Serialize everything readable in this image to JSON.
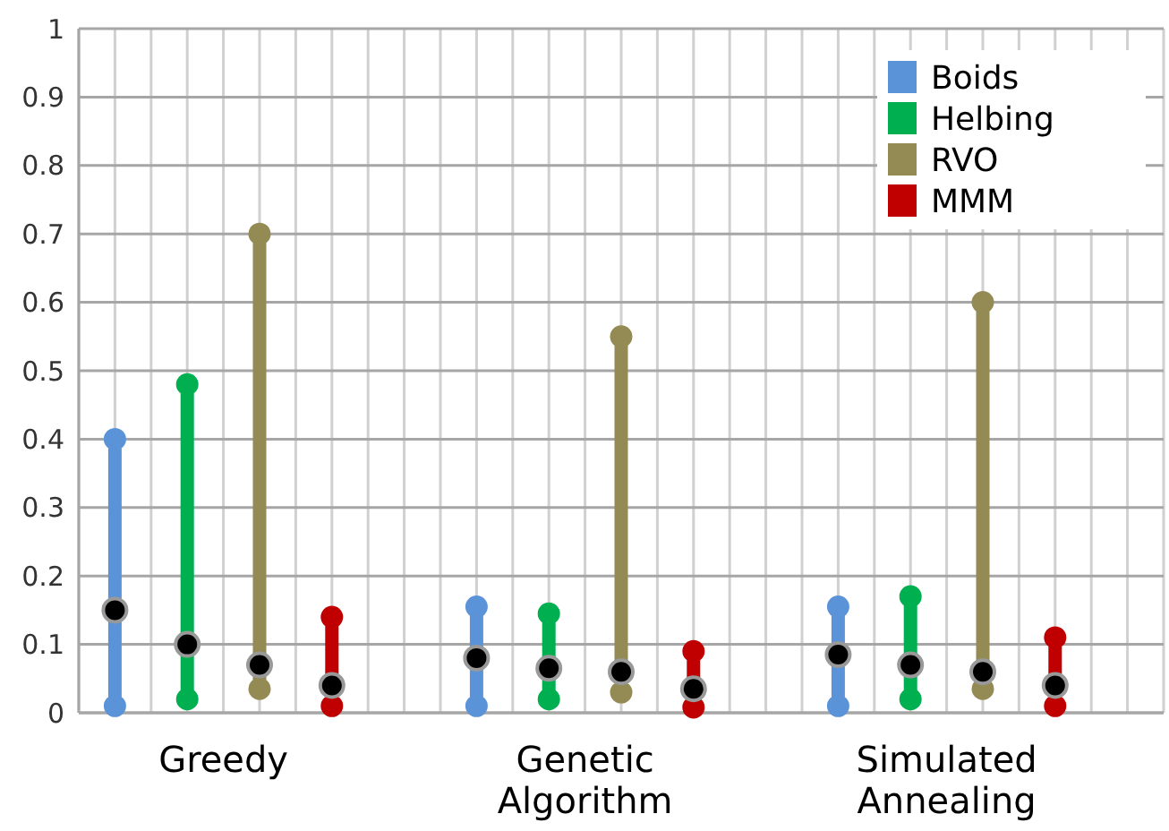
{
  "chart_data": {
    "type": "box",
    "categories": [
      "Greedy",
      "Genetic Algorithm",
      "Simulated Annealing"
    ],
    "series": [
      {
        "name": "Boids",
        "color": "#5b93d9",
        "boxes": [
          {
            "low": 0.01,
            "q1": 0.01,
            "median": 0.15,
            "q3": 0.4,
            "high": 0.4
          },
          {
            "low": 0.01,
            "q1": 0.01,
            "median": 0.08,
            "q3": 0.155,
            "high": 0.155
          },
          {
            "low": 0.01,
            "q1": 0.01,
            "median": 0.085,
            "q3": 0.155,
            "high": 0.155
          }
        ]
      },
      {
        "name": "Helbing",
        "color": "#00b050",
        "boxes": [
          {
            "low": 0.02,
            "q1": 0.02,
            "median": 0.1,
            "q3": 0.48,
            "high": 0.48
          },
          {
            "low": 0.02,
            "q1": 0.02,
            "median": 0.065,
            "q3": 0.145,
            "high": 0.145
          },
          {
            "low": 0.02,
            "q1": 0.02,
            "median": 0.07,
            "q3": 0.17,
            "high": 0.17
          }
        ]
      },
      {
        "name": "RVO",
        "color": "#948a54",
        "boxes": [
          {
            "low": 0.035,
            "q1": 0.035,
            "median": 0.07,
            "q3": 0.7,
            "high": 0.7
          },
          {
            "low": 0.03,
            "q1": 0.03,
            "median": 0.06,
            "q3": 0.55,
            "high": 0.55
          },
          {
            "low": 0.035,
            "q1": 0.035,
            "median": 0.06,
            "q3": 0.6,
            "high": 0.6
          }
        ]
      },
      {
        "name": "MMM",
        "color": "#c00000",
        "boxes": [
          {
            "low": 0.01,
            "q1": 0.01,
            "median": 0.04,
            "q3": 0.14,
            "high": 0.14
          },
          {
            "low": 0.008,
            "q1": 0.008,
            "median": 0.035,
            "q3": 0.09,
            "high": 0.09
          },
          {
            "low": 0.01,
            "q1": 0.01,
            "median": 0.04,
            "q3": 0.11,
            "high": 0.11
          }
        ]
      }
    ],
    "ylim": [
      0,
      1
    ],
    "yticks": [
      0,
      0.1,
      0.2,
      0.3,
      0.4,
      0.5,
      0.6,
      0.7,
      0.8,
      0.9,
      1
    ],
    "grid": true,
    "legend": "top right"
  }
}
